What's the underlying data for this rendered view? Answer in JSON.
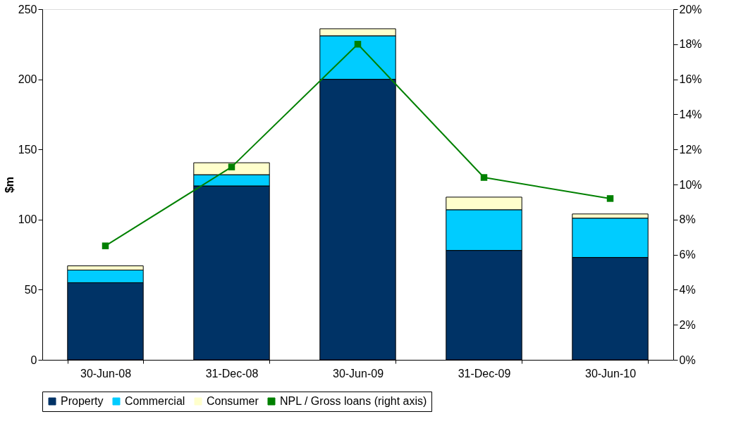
{
  "chart_data": {
    "type": "bar",
    "stacked": true,
    "ylabel": "$m",
    "categories": [
      "30-Jun-08",
      "31-Dec-08",
      "30-Jun-09",
      "31-Dec-09",
      "30-Jun-10"
    ],
    "series": [
      {
        "name": "Property",
        "color": "#003366",
        "values": [
          55,
          124,
          200,
          78,
          73
        ]
      },
      {
        "name": "Commercial",
        "color": "#00ccff",
        "values": [
          9,
          8,
          31,
          29,
          28
        ]
      },
      {
        "name": "Consumer",
        "color": "#ffffcc",
        "values": [
          3,
          8.5,
          5,
          9,
          3
        ]
      },
      {
        "name": "NPL / Gross loans (right axis)",
        "type": "line",
        "axis": "y2",
        "color": "#008000",
        "marker": "square",
        "values": [
          6.5,
          11.0,
          18.0,
          10.4,
          9.2
        ]
      }
    ],
    "ylim": [
      0,
      250
    ],
    "yticks": [
      0,
      50,
      100,
      150,
      200,
      250
    ],
    "y2lim": [
      0,
      20
    ],
    "y2ticks": [
      {
        "value": 0,
        "label": "0%"
      },
      {
        "value": 2,
        "label": "2%"
      },
      {
        "value": 4,
        "label": "4%"
      },
      {
        "value": 6,
        "label": "6%"
      },
      {
        "value": 8,
        "label": "8%"
      },
      {
        "value": 10,
        "label": "10%"
      },
      {
        "value": 12,
        "label": "12%"
      },
      {
        "value": 14,
        "label": "14%"
      },
      {
        "value": 16,
        "label": "16%"
      },
      {
        "value": 18,
        "label": "18%"
      },
      {
        "value": 20,
        "label": "20%"
      }
    ],
    "grid": false,
    "legend": "bottom"
  }
}
